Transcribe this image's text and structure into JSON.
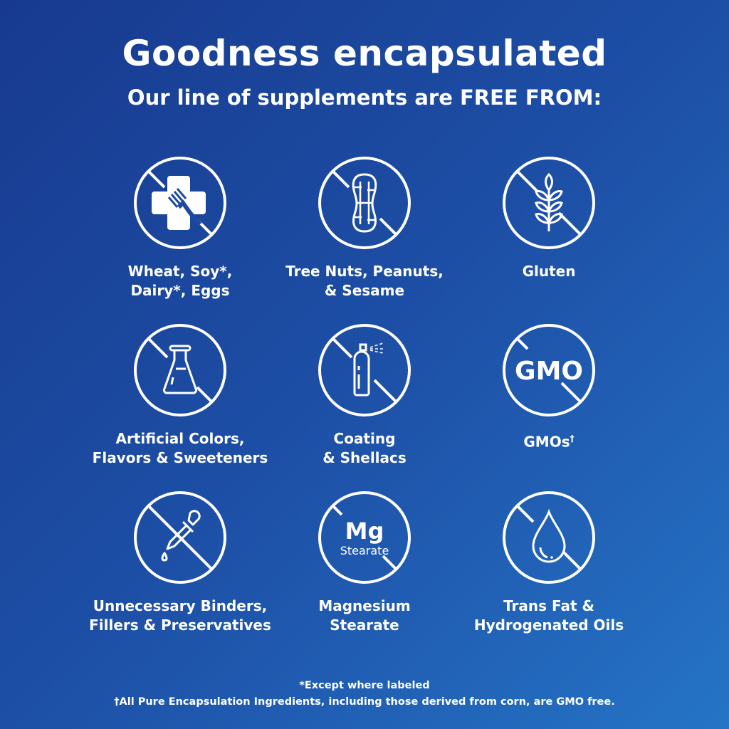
{
  "header": {
    "title": "Goodness encapsulated",
    "subtitle": "Our line of supplements are FREE FROM:"
  },
  "items": [
    {
      "icon": "allergen-fork-cross-icon",
      "line1": "Wheat, Soy*,",
      "line2": "Dairy*, Eggs"
    },
    {
      "icon": "peanut-icon",
      "line1": "Tree Nuts, Peanuts,",
      "line2": "& Sesame"
    },
    {
      "icon": "wheat-icon",
      "line1": "Gluten",
      "line2": ""
    },
    {
      "icon": "flask-icon",
      "line1": "Artificial Colors,",
      "line2": "Flavors & Sweeteners"
    },
    {
      "icon": "spray-can-icon",
      "line1": "Coating",
      "line2": "& Shellacs"
    },
    {
      "icon": "gmo-icon",
      "line1": "GMOs",
      "line2": "",
      "sup": "†",
      "icon_text": "GMO"
    },
    {
      "icon": "dropper-icon",
      "line1": "Unnecessary Binders,",
      "line2": "Fillers & Preservatives"
    },
    {
      "icon": "mg-stearate-icon",
      "line1": "Magnesium",
      "line2": "Stearate",
      "icon_text": "Mg",
      "icon_subtext": "Stearate"
    },
    {
      "icon": "oil-drop-icon",
      "line1": "Trans Fat &",
      "line2": "Hydrogenated Oils"
    }
  ],
  "footnotes": [
    "*Except where labeled",
    "†All Pure Encapsulation Ingredients, including those derived from corn, are GMO free."
  ],
  "colors": {
    "background_start": "#173a8f",
    "background_end": "#2574c6",
    "foreground": "#ffffff"
  }
}
